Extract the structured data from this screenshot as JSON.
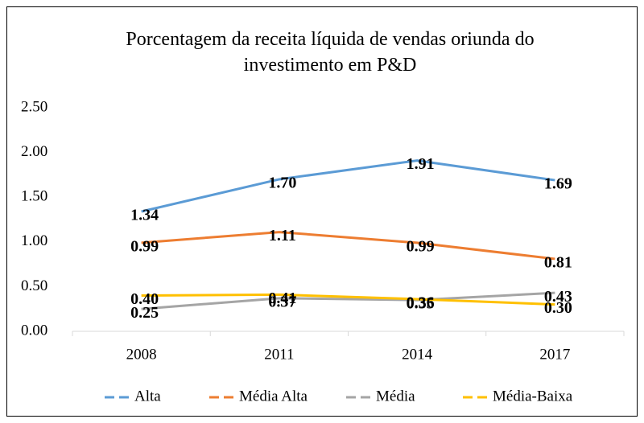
{
  "chart_data": {
    "type": "line",
    "title": "Porcentagem da receita líquida de vendas oriunda do investimento em P&D",
    "categories": [
      "2008",
      "2011",
      "2014",
      "2017"
    ],
    "series": [
      {
        "name": "Alta",
        "color": "#5b9bd5",
        "values": [
          1.34,
          1.7,
          1.91,
          1.69
        ],
        "value_labels": [
          "1.34",
          "1.70",
          "1.91",
          "1.69"
        ]
      },
      {
        "name": "Média Alta",
        "color": "#ed7d31",
        "values": [
          0.99,
          1.11,
          0.99,
          0.81
        ],
        "value_labels": [
          "0.99",
          "1.11",
          "0.99",
          "0.81"
        ]
      },
      {
        "name": "Média",
        "color": "#a5a5a5",
        "values": [
          0.25,
          0.37,
          0.35,
          0.43
        ],
        "value_labels": [
          "0.25",
          "0.37",
          "0.35",
          "0.43"
        ]
      },
      {
        "name": "Média-Baixa",
        "color": "#ffc000",
        "values": [
          0.4,
          0.41,
          0.36,
          0.3
        ],
        "value_labels": [
          "0.40",
          "0.41",
          "0.36",
          "0.30"
        ]
      }
    ],
    "ylim": [
      0,
      2.5
    ],
    "yticks": [
      {
        "value": 0,
        "label": "0.00"
      },
      {
        "value": 0.5,
        "label": "0.50"
      },
      {
        "value": 1,
        "label": "1.00"
      },
      {
        "value": 1.5,
        "label": "1.50"
      },
      {
        "value": 2,
        "label": "2.00"
      },
      {
        "value": 2.5,
        "label": "2.50"
      }
    ],
    "grid": false,
    "legend": "bottom"
  }
}
